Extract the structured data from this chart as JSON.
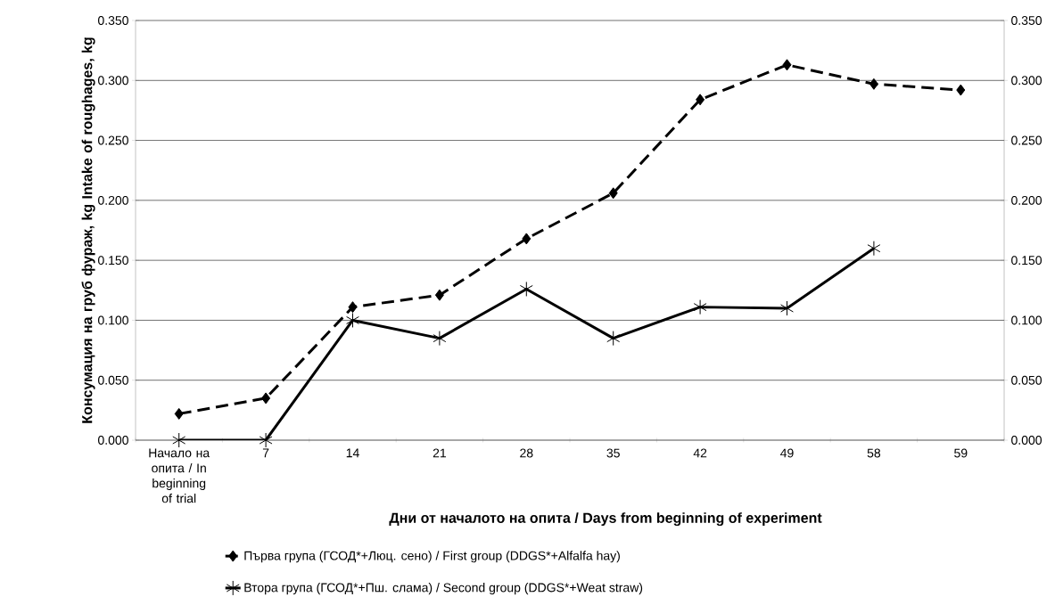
{
  "chart_data": {
    "type": "line",
    "xlabel": "Дни от началото на опита / Days from beginning of experiment",
    "ylabel": "Консумация на груб фураж, kg Intake of roughages, kg",
    "categories": [
      "Начало на опита / In beginning of trial",
      "7",
      "14",
      "21",
      "28",
      "35",
      "42",
      "49",
      "58",
      "59"
    ],
    "series": [
      {
        "name": "Първа група (ГСОД*+Люц. сено) / First group (DDGS*+Alfalfa hay)",
        "color": "#000000",
        "marker": "diamond",
        "line_style": "dashed",
        "values": [
          0.022,
          0.035,
          0.111,
          0.121,
          0.168,
          0.206,
          0.284,
          0.313,
          0.297,
          0.292
        ]
      },
      {
        "name": "Втора група (ГСОД*+Пш. слама) / Second group (DDGS*+Weat straw)",
        "color": "#000000",
        "marker": "cross",
        "line_style": "solid",
        "values": [
          0,
          0,
          0.1,
          0.085,
          0.126,
          0.085,
          0.111,
          0.11,
          0.16,
          null
        ]
      }
    ],
    "ylim": [
      0,
      0.35
    ],
    "yticks": [
      {
        "value": 0,
        "label": "0.000"
      },
      {
        "value": 0.05,
        "label": "0.050"
      },
      {
        "value": 0.1,
        "label": "0.100"
      },
      {
        "value": 0.15,
        "label": "0.150"
      },
      {
        "value": 0.2,
        "label": "0.200"
      },
      {
        "value": 0.25,
        "label": "0.250"
      },
      {
        "value": 0.3,
        "label": "0.300"
      },
      {
        "value": 0.35,
        "label": "0.350"
      }
    ],
    "y2lim": [
      0,
      0.35
    ],
    "y2ticks": [
      {
        "value": 0,
        "label": "0.000"
      },
      {
        "value": 0.05,
        "label": "0.050"
      },
      {
        "value": 0.1,
        "label": "0.100"
      },
      {
        "value": 0.15,
        "label": "0.150"
      },
      {
        "value": 0.2,
        "label": "0.200"
      },
      {
        "value": 0.25,
        "label": "0.250"
      },
      {
        "value": 0.3,
        "label": "0.300"
      },
      {
        "value": 0.35,
        "label": "0.350"
      }
    ],
    "grid": "y",
    "legend": "bottom"
  }
}
